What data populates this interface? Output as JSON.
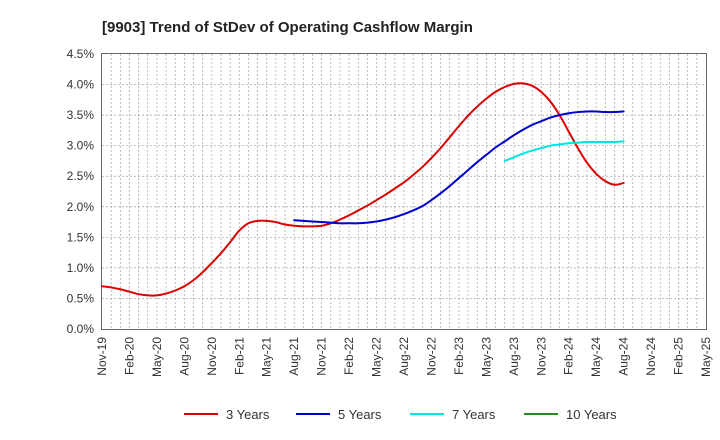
{
  "chart_data": {
    "type": "line",
    "title": "[9903]  Trend of StDev of Operating Cashflow Margin",
    "xlabel": "",
    "ylabel": "",
    "x_ticks": [
      "Nov-19",
      "Feb-20",
      "May-20",
      "Aug-20",
      "Nov-20",
      "Feb-21",
      "May-21",
      "Aug-21",
      "Nov-21",
      "Feb-22",
      "May-22",
      "Aug-22",
      "Nov-22",
      "Feb-23",
      "May-23",
      "Aug-23",
      "Nov-23",
      "Feb-24",
      "May-24",
      "Aug-24",
      "Nov-24",
      "Feb-25",
      "May-25"
    ],
    "y_ticks": [
      "0.0%",
      "0.5%",
      "1.0%",
      "1.5%",
      "2.0%",
      "2.5%",
      "3.0%",
      "3.5%",
      "4.0%",
      "4.5%"
    ],
    "ylim": [
      0,
      4.5
    ],
    "grid": true,
    "legend_position": "bottom",
    "series": [
      {
        "name": "3 Years",
        "color": "#dd0000",
        "x": [
          "Nov-19",
          "Dec-19",
          "Jan-20",
          "Feb-20",
          "Mar-20",
          "Apr-20",
          "May-20",
          "Jun-20",
          "Jul-20",
          "Aug-20",
          "Sep-20",
          "Oct-20",
          "Nov-20",
          "Dec-20",
          "Jan-21",
          "Feb-21",
          "Mar-21",
          "Apr-21",
          "May-21",
          "Jun-21",
          "Jul-21",
          "Aug-21",
          "Sep-21",
          "Oct-21",
          "Nov-21",
          "Dec-21",
          "Jan-22",
          "Feb-22",
          "Mar-22",
          "Apr-22",
          "May-22",
          "Jun-22",
          "Jul-22",
          "Aug-22",
          "Sep-22",
          "Oct-22",
          "Nov-22",
          "Dec-22",
          "Jan-23",
          "Feb-23",
          "Mar-23",
          "Apr-23",
          "May-23",
          "Jun-23",
          "Jul-23",
          "Aug-23",
          "Sep-23",
          "Oct-23",
          "Nov-23",
          "Dec-23",
          "Jan-24",
          "Feb-24",
          "Mar-24",
          "Apr-24",
          "May-24",
          "Jun-24",
          "Jul-24",
          "Aug-24"
        ],
        "values": [
          0.7,
          0.68,
          0.65,
          0.61,
          0.57,
          0.55,
          0.55,
          0.58,
          0.63,
          0.7,
          0.8,
          0.93,
          1.08,
          1.24,
          1.42,
          1.61,
          1.73,
          1.77,
          1.77,
          1.75,
          1.71,
          1.69,
          1.68,
          1.68,
          1.69,
          1.73,
          1.79,
          1.86,
          1.94,
          2.02,
          2.11,
          2.2,
          2.3,
          2.4,
          2.52,
          2.65,
          2.8,
          2.96,
          3.14,
          3.32,
          3.49,
          3.64,
          3.77,
          3.88,
          3.96,
          4.01,
          4.02,
          3.98,
          3.88,
          3.72,
          3.5,
          3.23,
          2.96,
          2.72,
          2.54,
          2.42,
          2.36,
          2.39
        ]
      },
      {
        "name": "5 Years",
        "color": "#0000cc",
        "x": [
          "Aug-21",
          "Sep-21",
          "Oct-21",
          "Nov-21",
          "Dec-21",
          "Jan-22",
          "Feb-22",
          "Mar-22",
          "Apr-22",
          "May-22",
          "Jun-22",
          "Jul-22",
          "Aug-22",
          "Sep-22",
          "Oct-22",
          "Nov-22",
          "Dec-22",
          "Jan-23",
          "Feb-23",
          "Mar-23",
          "Apr-23",
          "May-23",
          "Jun-23",
          "Jul-23",
          "Aug-23",
          "Sep-23",
          "Oct-23",
          "Nov-23",
          "Dec-23",
          "Jan-24",
          "Feb-24",
          "Mar-24",
          "Apr-24",
          "May-24",
          "Jun-24",
          "Jul-24",
          "Aug-24"
        ],
        "values": [
          1.78,
          1.77,
          1.76,
          1.75,
          1.74,
          1.73,
          1.73,
          1.73,
          1.74,
          1.76,
          1.79,
          1.83,
          1.88,
          1.94,
          2.01,
          2.11,
          2.22,
          2.34,
          2.47,
          2.6,
          2.73,
          2.85,
          2.97,
          3.07,
          3.17,
          3.26,
          3.34,
          3.4,
          3.46,
          3.5,
          3.53,
          3.55,
          3.56,
          3.56,
          3.55,
          3.55,
          3.56
        ]
      },
      {
        "name": "7 Years",
        "color": "#00e5e5",
        "x": [
          "Jul-23",
          "Aug-23",
          "Sep-23",
          "Oct-23",
          "Nov-23",
          "Dec-23",
          "Jan-24",
          "Feb-24",
          "Mar-24",
          "Apr-24",
          "May-24",
          "Jun-24",
          "Jul-24",
          "Aug-24"
        ],
        "values": [
          2.75,
          2.81,
          2.87,
          2.92,
          2.96,
          3.0,
          3.02,
          3.04,
          3.05,
          3.06,
          3.06,
          3.06,
          3.06,
          3.07
        ]
      },
      {
        "name": "10 Years",
        "color": "#228b22",
        "x": [],
        "values": []
      }
    ]
  }
}
